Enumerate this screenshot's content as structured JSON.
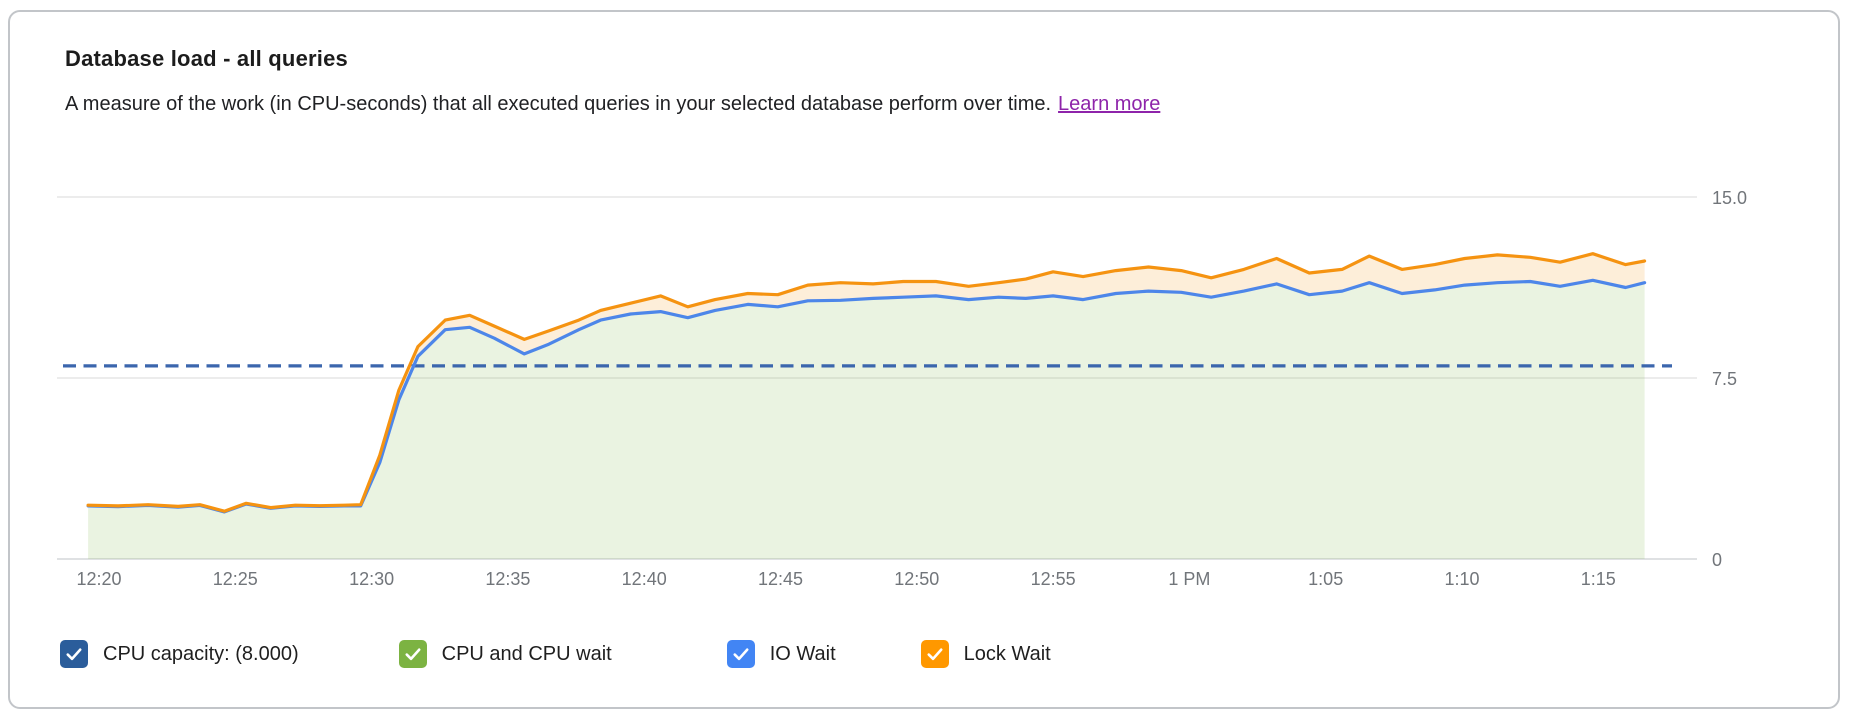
{
  "card": {
    "title": "Database load - all queries",
    "subtitle": "A measure of the work (in CPU-seconds) that all executed queries in your selected database perform over time.",
    "learn_more_label": "Learn more"
  },
  "colors": {
    "learn_more_link": "#8e24aa",
    "axis_label": "#71757a",
    "gridline": "#ececec",
    "baseline": "#dfe1e3",
    "card_border": "#c2c5c9"
  },
  "legend": [
    {
      "id": "cpu-capacity",
      "label": "CPU capacity: (8.000)",
      "color": "#2b5d9b",
      "checked": true
    },
    {
      "id": "cpu-and-cpu-wait",
      "label": "CPU and CPU wait",
      "color": "#7cb342",
      "checked": true
    },
    {
      "id": "io-wait",
      "label": "IO Wait",
      "color": "#4285f4",
      "checked": true
    },
    {
      "id": "lock-wait",
      "label": "Lock Wait",
      "color": "#ff9800",
      "checked": true
    }
  ],
  "chart_data": {
    "type": "area",
    "title": "Database load - all queries",
    "xlabel": "",
    "ylabel": "",
    "ylim": [
      0,
      15
    ],
    "grid": "horizontal gridlines only",
    "legend_position": "bottom",
    "y_ticks": [
      {
        "value": 15,
        "label": "15.0"
      },
      {
        "value": 7.5,
        "label": "7.5"
      },
      {
        "value": 0,
        "label": "0"
      }
    ],
    "x_unit": "minutes after 12:20 PM",
    "x_ticks": [
      {
        "label": "12:20",
        "minute": 0
      },
      {
        "label": "12:25",
        "minute": 5
      },
      {
        "label": "12:30",
        "minute": 10
      },
      {
        "label": "12:35",
        "minute": 15
      },
      {
        "label": "12:40",
        "minute": 20
      },
      {
        "label": "12:45",
        "minute": 25
      },
      {
        "label": "12:50",
        "minute": 30
      },
      {
        "label": "12:55",
        "minute": 35
      },
      {
        "label": "1 PM",
        "minute": 40
      },
      {
        "label": "1:05",
        "minute": 45
      },
      {
        "label": "1:10",
        "minute": 50
      },
      {
        "label": "1:15",
        "minute": 55
      }
    ],
    "capacity": {
      "label": "CPU capacity",
      "value": 8.0,
      "display": "(8.000)",
      "color": "#3b66ad",
      "style": "dashed"
    },
    "cpu_fill_color": "#7cb342",
    "stacking_note": "Stacked area. Blue line = cumulative CPU + CPU wait + IO Wait (green fill spans 0 to blue line; IO Wait contribution ~0). Orange line = total including Lock Wait (pale orange band between blue and orange lines). Flat ~2.2 until 12:30, sharp ramp to ~10, slow climb to ~12.5 by 1:15.",
    "series": [
      {
        "name": "IO Wait (stack top, blue line)",
        "color": "#4d86e9",
        "points": [
          [
            -0.4,
            2.2
          ],
          [
            0.7,
            2.17
          ],
          [
            1.8,
            2.22
          ],
          [
            2.9,
            2.15
          ],
          [
            3.7,
            2.22
          ],
          [
            4.6,
            1.95
          ],
          [
            5.4,
            2.28
          ],
          [
            6.3,
            2.1
          ],
          [
            7.2,
            2.2
          ],
          [
            8.1,
            2.18
          ],
          [
            9.0,
            2.2
          ],
          [
            9.6,
            2.2
          ],
          [
            10.3,
            4.0
          ],
          [
            11.0,
            6.6
          ],
          [
            11.7,
            8.4
          ],
          [
            12.7,
            9.5
          ],
          [
            13.6,
            9.6
          ],
          [
            14.5,
            9.15
          ],
          [
            15.6,
            8.5
          ],
          [
            16.5,
            8.9
          ],
          [
            17.6,
            9.5
          ],
          [
            18.4,
            9.9
          ],
          [
            19.5,
            10.15
          ],
          [
            20.6,
            10.25
          ],
          [
            21.6,
            10.0
          ],
          [
            22.6,
            10.3
          ],
          [
            23.8,
            10.55
          ],
          [
            24.9,
            10.45
          ],
          [
            26.0,
            10.7
          ],
          [
            27.2,
            10.72
          ],
          [
            28.4,
            10.8
          ],
          [
            29.5,
            10.85
          ],
          [
            30.7,
            10.9
          ],
          [
            31.9,
            10.75
          ],
          [
            33.0,
            10.85
          ],
          [
            34.0,
            10.8
          ],
          [
            35.0,
            10.9
          ],
          [
            36.1,
            10.75
          ],
          [
            37.3,
            11.0
          ],
          [
            38.5,
            11.1
          ],
          [
            39.7,
            11.05
          ],
          [
            40.8,
            10.85
          ],
          [
            42.0,
            11.1
          ],
          [
            43.2,
            11.4
          ],
          [
            44.4,
            10.95
          ],
          [
            45.6,
            11.1
          ],
          [
            46.6,
            11.45
          ],
          [
            47.8,
            11.0
          ],
          [
            49.0,
            11.15
          ],
          [
            50.1,
            11.35
          ],
          [
            51.3,
            11.45
          ],
          [
            52.5,
            11.5
          ],
          [
            53.6,
            11.3
          ],
          [
            54.8,
            11.55
          ],
          [
            56.0,
            11.25
          ],
          [
            56.7,
            11.45
          ]
        ]
      },
      {
        "name": "Lock Wait (stack top / total, orange line)",
        "color": "#f59311",
        "points": [
          [
            -0.4,
            2.23
          ],
          [
            0.7,
            2.2
          ],
          [
            1.8,
            2.25
          ],
          [
            2.9,
            2.18
          ],
          [
            3.7,
            2.25
          ],
          [
            4.6,
            1.98
          ],
          [
            5.4,
            2.31
          ],
          [
            6.3,
            2.13
          ],
          [
            7.2,
            2.23
          ],
          [
            8.1,
            2.21
          ],
          [
            9.0,
            2.23
          ],
          [
            9.6,
            2.25
          ],
          [
            10.3,
            4.3
          ],
          [
            11.0,
            7.0
          ],
          [
            11.7,
            8.8
          ],
          [
            12.7,
            9.9
          ],
          [
            13.6,
            10.1
          ],
          [
            14.5,
            9.65
          ],
          [
            15.6,
            9.1
          ],
          [
            16.5,
            9.45
          ],
          [
            17.6,
            9.9
          ],
          [
            18.4,
            10.3
          ],
          [
            19.5,
            10.6
          ],
          [
            20.6,
            10.9
          ],
          [
            21.6,
            10.45
          ],
          [
            22.6,
            10.75
          ],
          [
            23.8,
            11.0
          ],
          [
            24.9,
            10.95
          ],
          [
            26.0,
            11.35
          ],
          [
            27.2,
            11.45
          ],
          [
            28.4,
            11.4
          ],
          [
            29.5,
            11.5
          ],
          [
            30.7,
            11.5
          ],
          [
            31.9,
            11.3
          ],
          [
            33.0,
            11.45
          ],
          [
            34.0,
            11.6
          ],
          [
            35.0,
            11.9
          ],
          [
            36.1,
            11.7
          ],
          [
            37.3,
            11.95
          ],
          [
            38.5,
            12.1
          ],
          [
            39.7,
            11.95
          ],
          [
            40.8,
            11.65
          ],
          [
            42.0,
            12.0
          ],
          [
            43.2,
            12.45
          ],
          [
            44.4,
            11.85
          ],
          [
            45.6,
            12.0
          ],
          [
            46.6,
            12.55
          ],
          [
            47.8,
            12.0
          ],
          [
            49.0,
            12.2
          ],
          [
            50.1,
            12.45
          ],
          [
            51.3,
            12.6
          ],
          [
            52.5,
            12.5
          ],
          [
            53.6,
            12.3
          ],
          [
            54.8,
            12.65
          ],
          [
            56.0,
            12.2
          ],
          [
            56.7,
            12.35
          ]
        ]
      }
    ]
  }
}
